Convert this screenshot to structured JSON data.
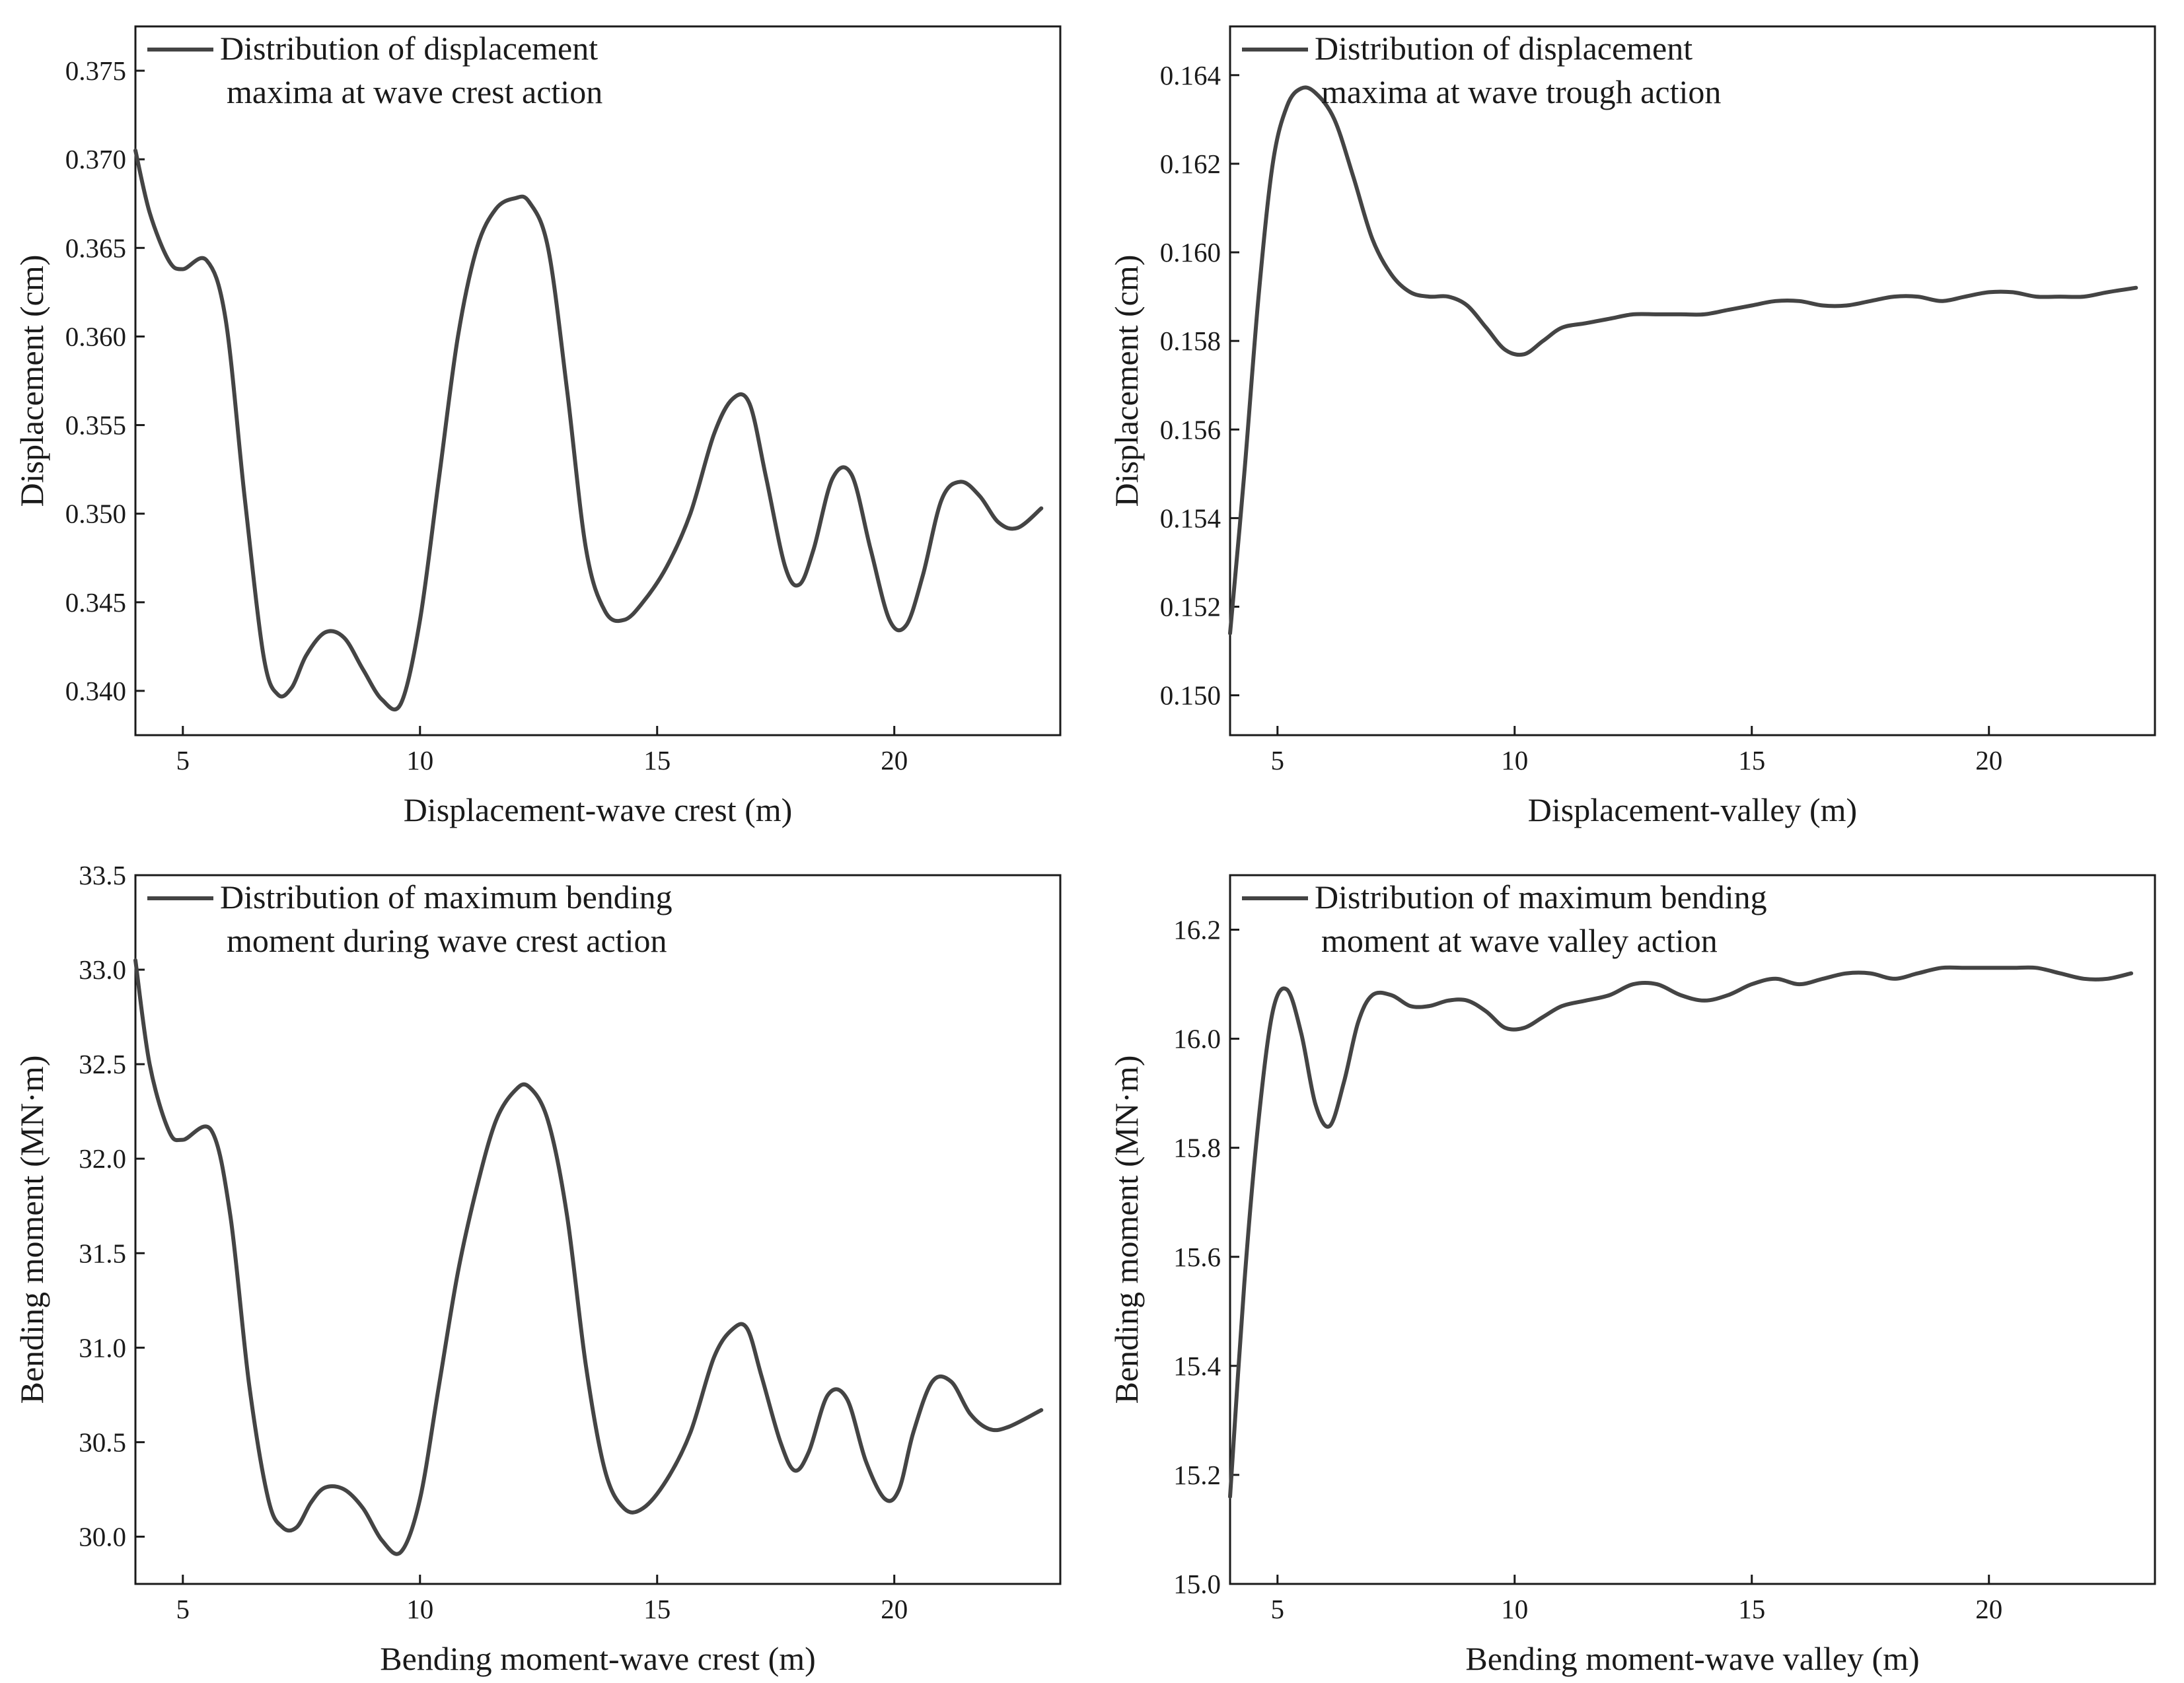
{
  "chart_data": [
    {
      "type": "line",
      "title": "",
      "xlabel": "Displacement-wave crest (m)",
      "ylabel": "Displacement (cm)",
      "xlim": [
        4,
        23.5
      ],
      "ylim": [
        0.3375,
        0.3775
      ],
      "xticks": [
        "5",
        "10",
        "15",
        "20"
      ],
      "yticks": [
        "0.340",
        "0.345",
        "0.350",
        "0.355",
        "0.360",
        "0.365",
        "0.370",
        "0.375"
      ],
      "legend": [
        "Distribution of displacement",
        "maxima at wave crest action"
      ],
      "series": [
        {
          "name": "Distribution of displacement maxima at wave crest action",
          "x": [
            4.0,
            4.3,
            4.7,
            5.0,
            5.5,
            5.9,
            6.3,
            6.7,
            7.0,
            7.3,
            7.6,
            8.0,
            8.4,
            8.8,
            9.2,
            9.6,
            10.0,
            10.4,
            10.8,
            11.2,
            11.6,
            12.0,
            12.3,
            12.7,
            13.1,
            13.5,
            13.9,
            14.3,
            14.7,
            15.2,
            15.7,
            16.2,
            16.6,
            16.95,
            17.3,
            17.7,
            18.0,
            18.3,
            18.7,
            19.1,
            19.5,
            19.9,
            20.25,
            20.6,
            21.0,
            21.4,
            21.8,
            22.2,
            22.6,
            23.1
          ],
          "y": [
            0.3705,
            0.367,
            0.3643,
            0.3638,
            0.3643,
            0.361,
            0.351,
            0.342,
            0.3398,
            0.3402,
            0.342,
            0.3433,
            0.343,
            0.3412,
            0.3395,
            0.3393,
            0.344,
            0.352,
            0.36,
            0.365,
            0.3672,
            0.3678,
            0.3676,
            0.365,
            0.357,
            0.348,
            0.3445,
            0.344,
            0.345,
            0.347,
            0.35,
            0.3545,
            0.3565,
            0.3562,
            0.352,
            0.347,
            0.346,
            0.348,
            0.352,
            0.3522,
            0.348,
            0.344,
            0.3437,
            0.3465,
            0.3508,
            0.3518,
            0.351,
            0.3495,
            0.3492,
            0.3503
          ]
        }
      ]
    },
    {
      "type": "line",
      "title": "",
      "xlabel": "Displacement-valley (m)",
      "ylabel": "Displacement (cm)",
      "xlim": [
        4,
        23.5
      ],
      "ylim": [
        0.1491,
        0.1651
      ],
      "xticks": [
        "5",
        "10",
        "15",
        "20"
      ],
      "yticks": [
        "0.150",
        "0.152",
        "0.154",
        "0.156",
        "0.158",
        "0.160",
        "0.162",
        "0.164"
      ],
      "legend": [
        "Distribution of displacement",
        "maxima at wave trough action"
      ],
      "series": [
        {
          "name": "Distribution of displacement maxima at wave trough action",
          "x": [
            4.0,
            4.3,
            4.6,
            4.9,
            5.2,
            5.5,
            5.8,
            6.2,
            6.6,
            7.0,
            7.4,
            7.8,
            8.2,
            8.6,
            9.0,
            9.4,
            9.8,
            10.2,
            10.6,
            11.0,
            11.5,
            12.0,
            12.5,
            13.0,
            13.5,
            14.0,
            14.5,
            15.0,
            15.5,
            16.0,
            16.5,
            17.0,
            17.5,
            18.0,
            18.5,
            19.0,
            19.5,
            20.0,
            20.5,
            21.0,
            21.5,
            22.0,
            22.5,
            23.1
          ],
          "y": [
            0.1514,
            0.155,
            0.159,
            0.162,
            0.1633,
            0.1637,
            0.1636,
            0.163,
            0.1617,
            0.1603,
            0.1595,
            0.1591,
            0.159,
            0.159,
            0.1588,
            0.1583,
            0.1578,
            0.1577,
            0.158,
            0.1583,
            0.1584,
            0.1585,
            0.1586,
            0.1586,
            0.1586,
            0.1586,
            0.1587,
            0.1588,
            0.1589,
            0.1589,
            0.1588,
            0.1588,
            0.1589,
            0.159,
            0.159,
            0.1589,
            0.159,
            0.1591,
            0.1591,
            0.159,
            0.159,
            0.159,
            0.1591,
            0.1592
          ]
        }
      ]
    },
    {
      "type": "line",
      "title": "",
      "xlabel": "Bending moment-wave crest (m)",
      "ylabel": "Bending moment (MN·m)",
      "xlim": [
        4,
        23.5
      ],
      "ylim": [
        29.75,
        33.5
      ],
      "xticks": [
        "5",
        "10",
        "15",
        "20"
      ],
      "yticks": [
        "30.0",
        "30.5",
        "31.0",
        "31.5",
        "32.0",
        "32.5",
        "33.0",
        "33.5"
      ],
      "legend": [
        "Distribution of maximum bending",
        "moment during wave crest action"
      ],
      "series": [
        {
          "name": "Distribution of maximum bending moment during wave crest action",
          "x": [
            4.0,
            4.3,
            4.7,
            5.0,
            5.6,
            6.0,
            6.4,
            6.8,
            7.1,
            7.4,
            7.7,
            8.0,
            8.4,
            8.8,
            9.2,
            9.6,
            10.0,
            10.4,
            10.8,
            11.2,
            11.6,
            12.0,
            12.3,
            12.7,
            13.1,
            13.5,
            13.9,
            14.3,
            14.7,
            15.2,
            15.7,
            16.2,
            16.6,
            16.9,
            17.2,
            17.6,
            17.9,
            18.2,
            18.6,
            19.0,
            19.4,
            19.8,
            20.1,
            20.4,
            20.8,
            21.2,
            21.6,
            22.0,
            22.4,
            23.1
          ],
          "y": [
            33.05,
            32.5,
            32.15,
            32.1,
            32.15,
            31.7,
            30.8,
            30.2,
            30.05,
            30.05,
            30.18,
            30.26,
            30.25,
            30.15,
            29.98,
            29.92,
            30.2,
            30.8,
            31.4,
            31.85,
            32.2,
            32.36,
            32.38,
            32.2,
            31.7,
            30.9,
            30.35,
            30.15,
            30.15,
            30.3,
            30.55,
            30.95,
            31.1,
            31.1,
            30.85,
            30.5,
            30.35,
            30.45,
            30.75,
            30.73,
            30.4,
            30.2,
            30.25,
            30.55,
            30.82,
            30.82,
            30.65,
            30.57,
            30.58,
            30.67
          ]
        }
      ]
    },
    {
      "type": "line",
      "title": "",
      "xlabel": "Bending moment-wave valley (m)",
      "ylabel": "Bending moment (MN·m)",
      "xlim": [
        4,
        23.5
      ],
      "ylim": [
        15.0,
        16.3
      ],
      "xticks": [
        "5",
        "10",
        "15",
        "20"
      ],
      "yticks": [
        "15.0",
        "15.2",
        "15.4",
        "15.6",
        "15.8",
        "16.0",
        "16.2"
      ],
      "legend": [
        "Distribution of maximum bending",
        "moment at wave valley action"
      ],
      "series": [
        {
          "name": "Distribution of maximum bending moment at wave valley action",
          "x": [
            4.0,
            4.3,
            4.6,
            4.9,
            5.2,
            5.5,
            5.8,
            6.1,
            6.4,
            6.7,
            7.0,
            7.4,
            7.8,
            8.2,
            8.6,
            9.0,
            9.4,
            9.8,
            10.2,
            10.6,
            11.0,
            11.5,
            12.0,
            12.5,
            13.0,
            13.5,
            14.0,
            14.5,
            15.0,
            15.5,
            16.0,
            16.5,
            17.0,
            17.5,
            18.0,
            18.5,
            19.0,
            19.5,
            20.0,
            20.5,
            21.0,
            21.5,
            22.0,
            22.5,
            23.0
          ],
          "y": [
            15.16,
            15.55,
            15.85,
            16.05,
            16.09,
            16.01,
            15.88,
            15.84,
            15.92,
            16.03,
            16.08,
            16.08,
            16.06,
            16.06,
            16.07,
            16.07,
            16.05,
            16.02,
            16.02,
            16.04,
            16.06,
            16.07,
            16.08,
            16.1,
            16.1,
            16.08,
            16.07,
            16.08,
            16.1,
            16.11,
            16.1,
            16.11,
            16.12,
            16.12,
            16.11,
            16.12,
            16.13,
            16.13,
            16.13,
            16.13,
            16.13,
            16.12,
            16.11,
            16.11,
            16.12
          ]
        }
      ]
    }
  ]
}
